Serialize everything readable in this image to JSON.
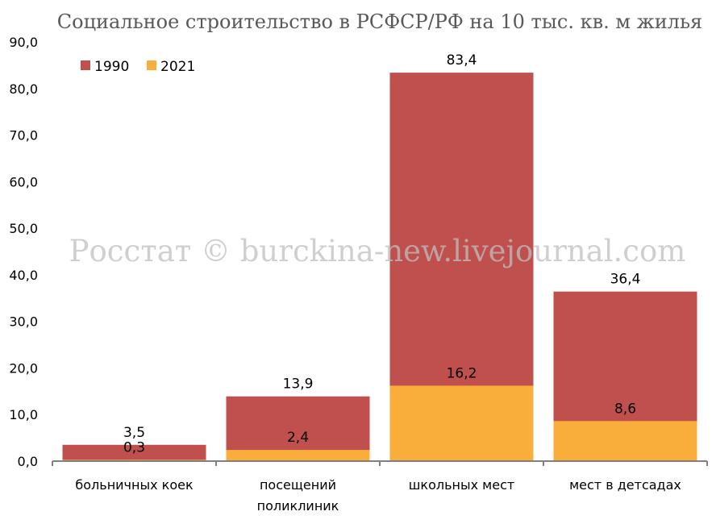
{
  "chart_data": {
    "type": "bar",
    "title": "Социальное строительство в РСФСР/РФ на 10 тыс. кв. м жилья",
    "categories": [
      "больничных коек",
      "посещений поликлиник",
      "школьных мест",
      "мест в детсадах"
    ],
    "category_lines": [
      [
        "больничных коек"
      ],
      [
        "посещений",
        "поликлиник"
      ],
      [
        "школьных мест"
      ],
      [
        "мест в детсадах"
      ]
    ],
    "series": [
      {
        "name": "1990",
        "color": "#c0504d",
        "values": [
          3.5,
          13.9,
          83.4,
          36.4
        ],
        "labels": [
          "3,5",
          "13,9",
          "83,4",
          "36,4"
        ]
      },
      {
        "name": "2021",
        "color": "#f9ae3c",
        "values": [
          0.3,
          2.4,
          16.2,
          8.6
        ],
        "labels": [
          "0,3",
          "2,4",
          "16,2",
          "8,6"
        ]
      }
    ],
    "ylim": [
      0,
      90
    ],
    "yticks": [
      "0,0",
      "10,0",
      "20,0",
      "30,0",
      "40,0",
      "50,0",
      "60,0",
      "70,0",
      "80,0",
      "90,0"
    ],
    "legend_position": "top-left",
    "watermark": "Росстат © burckina-new.livejournal.com",
    "grid": false
  }
}
